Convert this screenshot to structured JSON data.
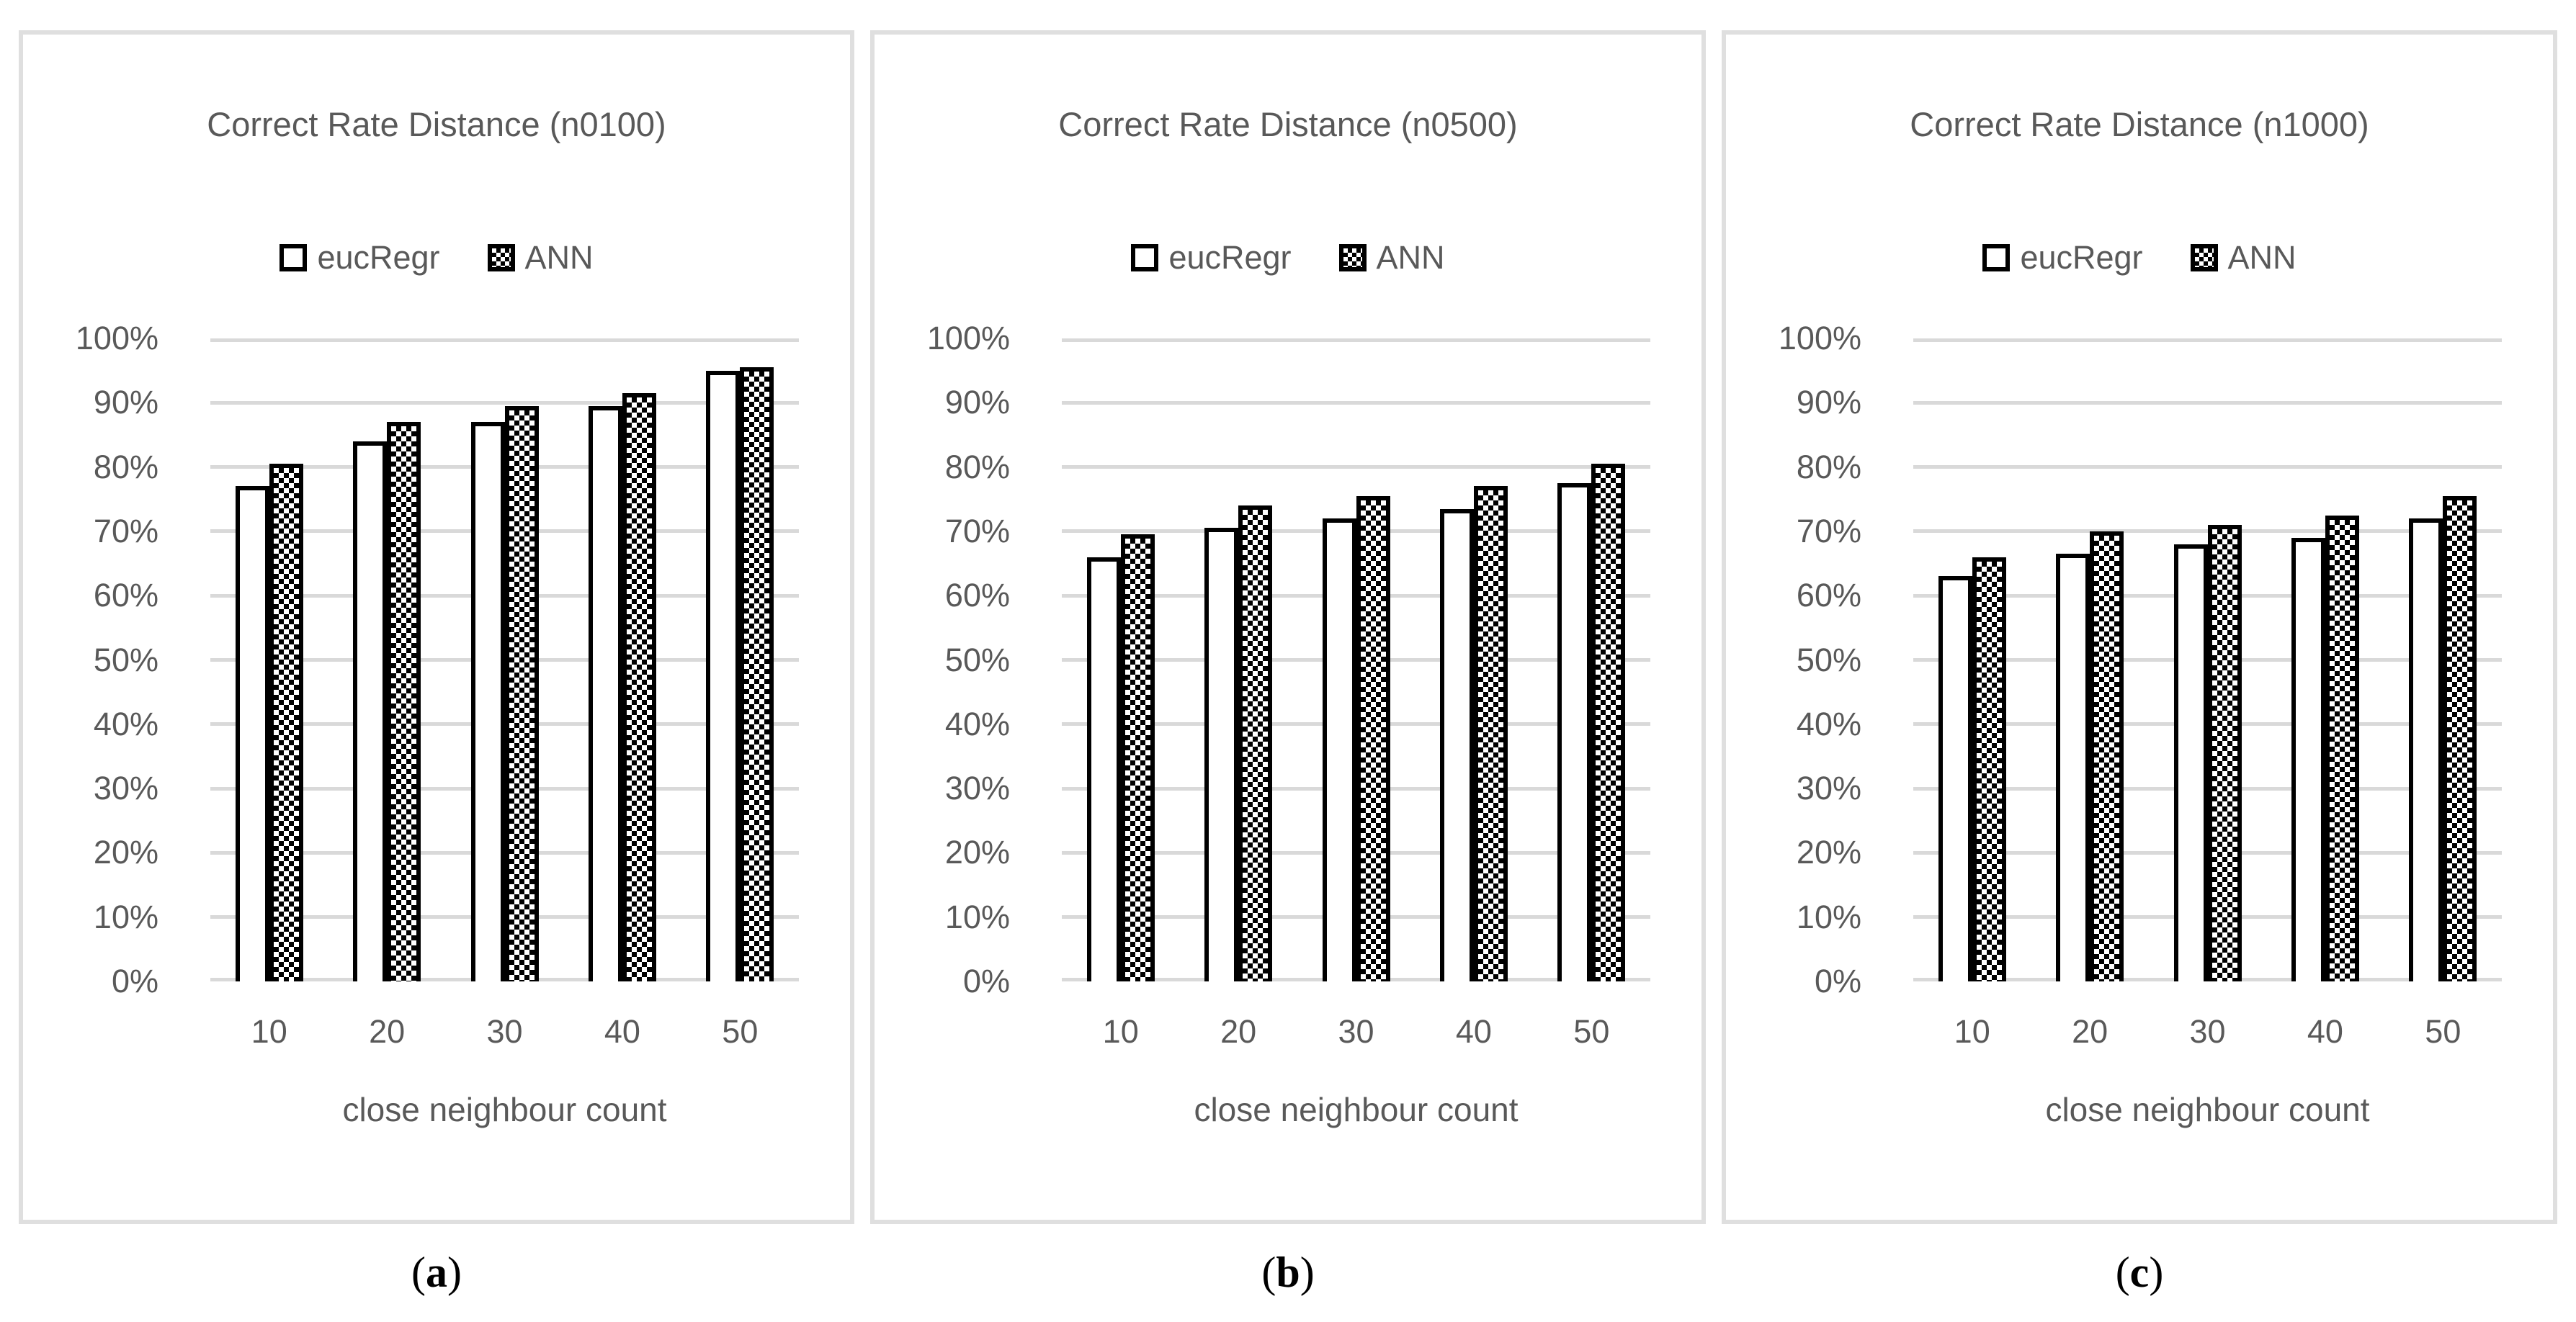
{
  "figure": {
    "background": "#ffffff",
    "legend_position": "top",
    "grid": true
  },
  "colors": {
    "text_gray": "#595959",
    "gridline": "#d9d9d9",
    "panel_border": "#dfdfdf",
    "bar_fill": "#ffffff",
    "bar_border": "#000000",
    "caption_text": "#000000"
  },
  "chart_data": [
    {
      "type": "bar",
      "title": "Correct Rate Distance (n0100)",
      "categories": [
        "10",
        "20",
        "30",
        "40",
        "50"
      ],
      "series": [
        {
          "name": "eucRegr",
          "pattern": "solid-white",
          "values": [
            77,
            84,
            87,
            89.5,
            95
          ]
        },
        {
          "name": "ANN",
          "pattern": "checkerboard",
          "values": [
            80.5,
            87,
            89.5,
            91.5,
            95.5
          ]
        }
      ],
      "xlabel": "close neighbour count",
      "ylabel": "",
      "ylim": [
        0,
        100
      ],
      "yticks": [
        "0%",
        "10%",
        "20%",
        "30%",
        "40%",
        "50%",
        "60%",
        "70%",
        "80%",
        "90%",
        "100%"
      ],
      "legend_position": "top",
      "caption_open": "(",
      "caption_letter": "a",
      "caption_close": ")"
    },
    {
      "type": "bar",
      "title": "Correct Rate Distance (n0500)",
      "categories": [
        "10",
        "20",
        "30",
        "40",
        "50"
      ],
      "series": [
        {
          "name": "eucRegr",
          "pattern": "solid-white",
          "values": [
            66,
            70.5,
            72,
            73.5,
            77.5
          ]
        },
        {
          "name": "ANN",
          "pattern": "checkerboard",
          "values": [
            69.5,
            74,
            75.5,
            77,
            80.5
          ]
        }
      ],
      "xlabel": "close neighbour count",
      "ylabel": "",
      "ylim": [
        0,
        100
      ],
      "yticks": [
        "0%",
        "10%",
        "20%",
        "30%",
        "40%",
        "50%",
        "60%",
        "70%",
        "80%",
        "90%",
        "100%"
      ],
      "legend_position": "top",
      "caption_open": "(",
      "caption_letter": "b",
      "caption_close": ")"
    },
    {
      "type": "bar",
      "title": "Correct Rate Distance (n1000)",
      "categories": [
        "10",
        "20",
        "30",
        "40",
        "50"
      ],
      "series": [
        {
          "name": "eucRegr",
          "pattern": "solid-white",
          "values": [
            63,
            66.5,
            68,
            69,
            72
          ]
        },
        {
          "name": "ANN",
          "pattern": "checkerboard",
          "values": [
            66,
            70,
            71,
            72.5,
            75.5
          ]
        }
      ],
      "xlabel": "close neighbour count",
      "ylabel": "",
      "ylim": [
        0,
        100
      ],
      "yticks": [
        "0%",
        "10%",
        "20%",
        "30%",
        "40%",
        "50%",
        "60%",
        "70%",
        "80%",
        "90%",
        "100%"
      ],
      "legend_position": "top",
      "caption_open": "(",
      "caption_letter": "c",
      "caption_close": ")"
    }
  ]
}
